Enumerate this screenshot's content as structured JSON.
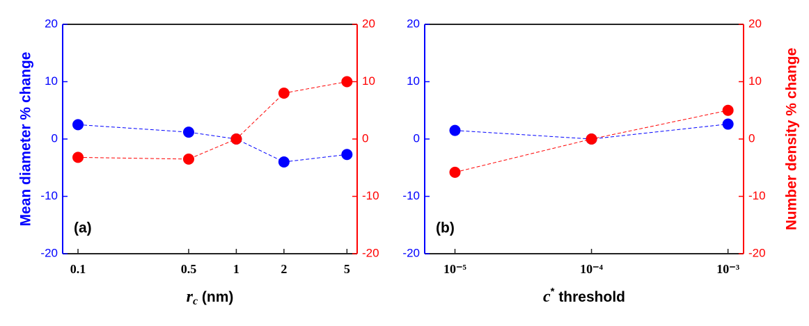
{
  "chart_data": [
    {
      "type": "line",
      "xscale": "log",
      "xlim": [
        0.08,
        5.8
      ],
      "xticks": [
        0.1,
        0.5,
        1,
        2,
        5
      ],
      "x": [
        0.1,
        0.5,
        1,
        2,
        5
      ],
      "ylim": [
        -20,
        20
      ],
      "yticks": [
        -20,
        -10,
        0,
        10,
        20
      ],
      "y2lim": [
        -20,
        20
      ],
      "y2ticks": [
        -20,
        -10,
        0,
        10,
        20
      ],
      "series": [
        {
          "color": "#0000ff",
          "values": [
            2.5,
            1.2,
            0,
            -4,
            -2.7
          ]
        },
        {
          "color": "#ff0000",
          "axis": "y2",
          "values": [
            -3.2,
            -3.5,
            0,
            8,
            10
          ]
        }
      ],
      "annotation": "(a)",
      "ylabel": "Mean diameter % change",
      "xlabel": {
        "symbol": "r",
        "subscript": "c",
        "text": " (nm)"
      }
    },
    {
      "type": "line",
      "xscale": "log",
      "xlim": [
        6e-06,
        0.0013
      ],
      "xticks": [
        {
          "value": 1e-05,
          "label": "10⁻⁵"
        },
        {
          "value": 0.0001,
          "label": "10⁻⁴"
        },
        {
          "value": 0.001,
          "label": "10⁻³"
        }
      ],
      "x": [
        1e-05,
        0.0001,
        0.001
      ],
      "ylim": [
        -20,
        20
      ],
      "yticks": [
        -20,
        -10,
        0,
        10,
        20
      ],
      "y2lim": [
        -20,
        20
      ],
      "y2ticks": [
        -20,
        -10,
        0,
        10,
        20
      ],
      "series": [
        {
          "color": "#0000ff",
          "values": [
            1.5,
            0,
            2.6
          ]
        },
        {
          "color": "#ff0000",
          "axis": "y2",
          "values": [
            -5.8,
            0,
            5
          ]
        }
      ],
      "annotation": "(b)",
      "y2label": "Number density % change",
      "xlabel": {
        "symbol": "c",
        "superscript": "*",
        "text": " threshold"
      }
    }
  ]
}
